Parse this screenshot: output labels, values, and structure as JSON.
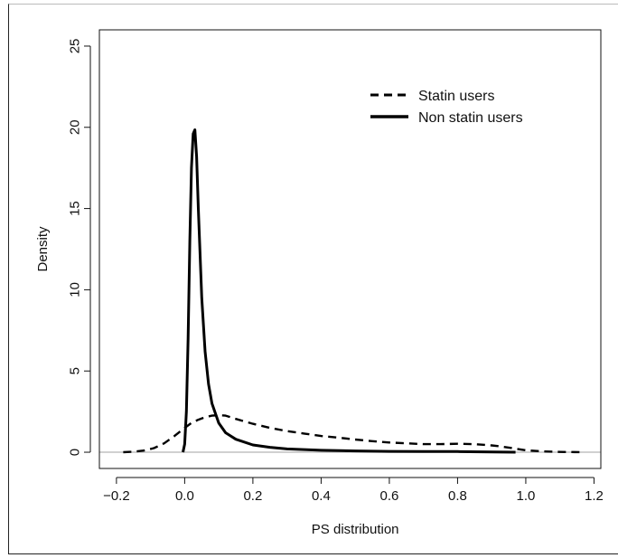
{
  "chart_data": {
    "type": "line",
    "xlabel": "PS distribution",
    "ylabel": "Density",
    "xlim": [
      -0.25,
      1.22
    ],
    "ylim": [
      -1.0,
      26.0
    ],
    "xticks": [
      -0.2,
      0.0,
      0.2,
      0.4,
      0.6,
      0.8,
      1.0,
      1.2
    ],
    "xtick_labels": [
      "−0.2",
      "0.0",
      "0.2",
      "0.4",
      "0.6",
      "0.8",
      "1.0",
      "1.2"
    ],
    "yticks": [
      0,
      5,
      10,
      15,
      20,
      25
    ],
    "ytick_labels": [
      "0",
      "5",
      "10",
      "15",
      "20",
      "25"
    ],
    "zero_line": true,
    "grid": false,
    "legend_position": "top-right",
    "series": [
      {
        "name": "Statin users",
        "line_style": "dashed",
        "color": "#000000",
        "x": [
          -0.18,
          -0.15,
          -0.12,
          -0.09,
          -0.06,
          -0.03,
          0.0,
          0.02,
          0.04,
          0.06,
          0.08,
          0.1,
          0.12,
          0.15,
          0.2,
          0.25,
          0.3,
          0.35,
          0.4,
          0.45,
          0.5,
          0.55,
          0.6,
          0.65,
          0.7,
          0.75,
          0.8,
          0.85,
          0.9,
          0.93,
          0.96,
          1.0,
          1.05,
          1.1,
          1.17
        ],
        "y": [
          0.0,
          0.03,
          0.1,
          0.25,
          0.55,
          1.0,
          1.5,
          1.8,
          2.0,
          2.15,
          2.25,
          2.28,
          2.25,
          2.05,
          1.75,
          1.5,
          1.3,
          1.15,
          1.0,
          0.9,
          0.78,
          0.68,
          0.6,
          0.55,
          0.5,
          0.5,
          0.52,
          0.5,
          0.42,
          0.35,
          0.25,
          0.12,
          0.05,
          0.02,
          0.0
        ]
      },
      {
        "name": "Non statin users",
        "line_style": "solid",
        "color": "#000000",
        "x": [
          -0.005,
          0.0,
          0.005,
          0.01,
          0.015,
          0.02,
          0.025,
          0.03,
          0.035,
          0.04,
          0.05,
          0.06,
          0.07,
          0.08,
          0.1,
          0.12,
          0.15,
          0.2,
          0.25,
          0.3,
          0.4,
          0.5,
          0.6,
          0.7,
          0.8,
          0.9,
          0.97
        ],
        "y": [
          0.0,
          0.5,
          2.5,
          7.0,
          13.0,
          17.5,
          19.6,
          19.85,
          18.2,
          15.0,
          9.5,
          6.2,
          4.2,
          3.0,
          1.8,
          1.2,
          0.8,
          0.45,
          0.3,
          0.2,
          0.12,
          0.08,
          0.05,
          0.04,
          0.04,
          0.02,
          0.0
        ]
      }
    ]
  }
}
